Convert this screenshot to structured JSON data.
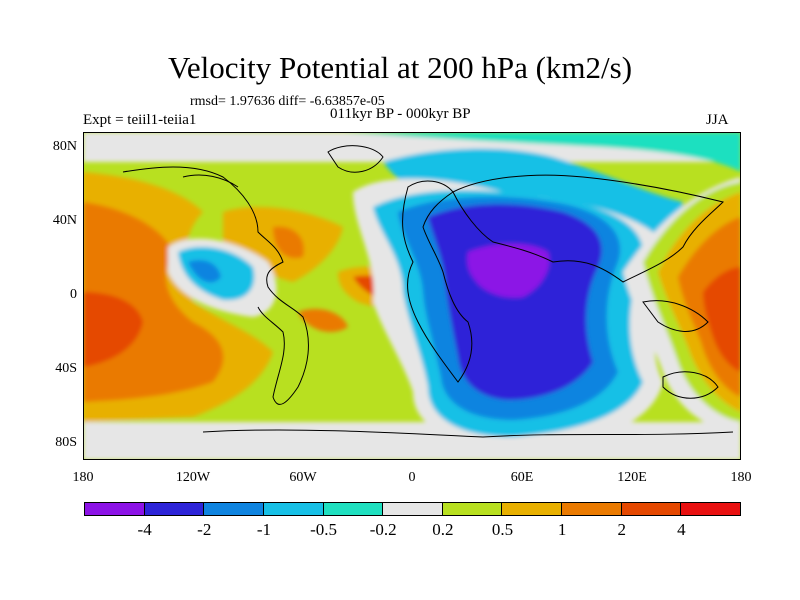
{
  "title": "Velocity Potential at 200 hPa (km2/s)",
  "stats": "rmsd= 1.97636 diff= -6.63857e-05",
  "experiment": "Expt = teiil1-teiia1",
  "period": "011kyr BP - 000kyr BP",
  "season": "JJA",
  "lat_labels": [
    "80N",
    "40N",
    "0",
    "40S",
    "80S"
  ],
  "lon_labels": [
    "180",
    "120W",
    "60W",
    "0",
    "60E",
    "120E",
    "180"
  ],
  "colorbar": {
    "colors": [
      "#8c12e6",
      "#2d24d8",
      "#0f84e0",
      "#17c0e6",
      "#1fe0c0",
      "#e6e6e6",
      "#b8e020",
      "#e8b000",
      "#ea7a00",
      "#e54800",
      "#e81010"
    ],
    "labels": [
      "-4",
      "-2",
      "-1",
      "-0.5",
      "-0.2",
      "0.2",
      "0.5",
      "1",
      "2",
      "4"
    ]
  }
}
